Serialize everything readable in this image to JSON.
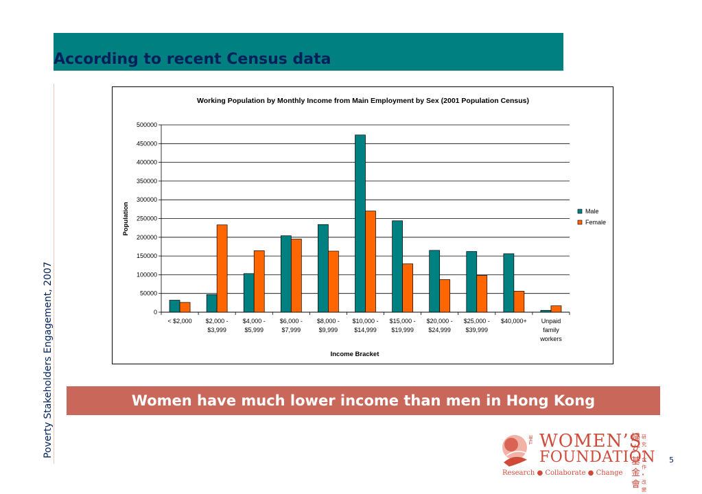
{
  "header": {
    "title": "According to recent Census data"
  },
  "sidebar": {
    "vertical_text": "Poverty Stakeholders Engagement, 2007"
  },
  "banner": {
    "text": "Women have much lower income than men in Hong Kong"
  },
  "footer": {
    "page_number": "5",
    "logo": {
      "the": "THE",
      "line1": "WOMEN’S",
      "line2": "FOUNDATION",
      "tagline": "Research ● Collaborate ● Change",
      "cjk_name": "婦女基金會",
      "cjk_motto": "研究•合作•改變"
    }
  },
  "colors": {
    "male": "#008080",
    "female": "#ff6600",
    "title_bar": "#008080",
    "banner": "#c8675a",
    "text_navy": "#00205c"
  },
  "chart_data": {
    "type": "bar",
    "title": "Working Population by Monthly Income from Main Employment by Sex (2001 Population Census)",
    "xlabel": "Income Bracket",
    "ylabel": "Population",
    "ylim": [
      0,
      500000
    ],
    "yticks": [
      "0",
      "50000",
      "100000",
      "150000",
      "200000",
      "250000",
      "300000",
      "350000",
      "400000",
      "450000",
      "500000"
    ],
    "grid": true,
    "legend_position": "right",
    "categories": [
      [
        "< $2,000"
      ],
      [
        "$2,000 -",
        "$3,999"
      ],
      [
        "$4,000 -",
        "$5,999"
      ],
      [
        "$6,000 -",
        "$7,999"
      ],
      [
        "$8,000 -",
        "$9,999"
      ],
      [
        "$10,000 -",
        "$14,999"
      ],
      [
        "$15,000 -",
        "$19,999"
      ],
      [
        "$20,000 -",
        "$24,999"
      ],
      [
        "$25,000 -",
        "$39,999"
      ],
      [
        "$40,000+"
      ],
      [
        "Unpaid",
        "family",
        "workers"
      ]
    ],
    "series": [
      {
        "name": "Male",
        "color": "#008080",
        "values": [
          32000,
          47000,
          103000,
          204000,
          234000,
          473000,
          244000,
          165000,
          162000,
          156000,
          5000
        ]
      },
      {
        "name": "Female",
        "color": "#ff6600",
        "values": [
          26000,
          233000,
          164000,
          195000,
          163000,
          270000,
          129000,
          87000,
          98000,
          56000,
          17000
        ]
      }
    ]
  }
}
